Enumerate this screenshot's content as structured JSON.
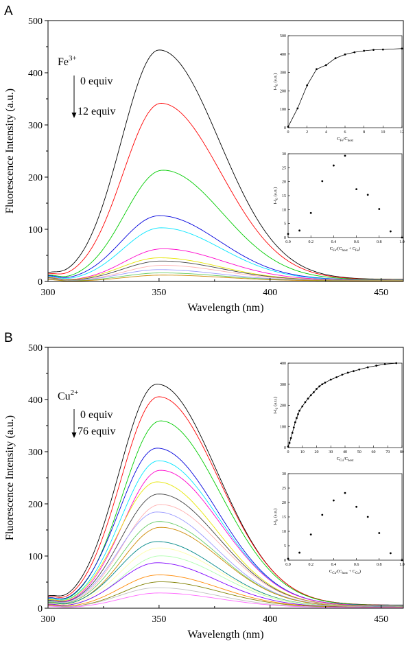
{
  "colors": [
    "#000000",
    "#ff0000",
    "#00cc00",
    "#0000dd",
    "#00e5ff",
    "#ff00cc",
    "#e6e600",
    "#404040",
    "#ffb0b0",
    "#9999ff",
    "#66cc66",
    "#cc8800",
    "#008888",
    "#ffffaa",
    "#b0ffb0",
    "#7f00ff",
    "#ff8800",
    "#808000",
    "#c0c0c0",
    "#ff66ff",
    "#00ff99"
  ],
  "panels": [
    {
      "label": "A",
      "ion_base": "Fe",
      "ion_charge": "3+",
      "start_equiv": "0 equiv",
      "end_equiv": "12 equiv",
      "chart": {
        "type": "line",
        "xlabel": "Wavelength (nm)",
        "ylabel": "Fluorescence Intensity (a.u.)",
        "xlim": [
          300,
          460
        ],
        "ylim": [
          0,
          500
        ],
        "xticks": [
          "300",
          "350",
          "400",
          "450"
        ],
        "yticks": [
          "0",
          "100",
          "200",
          "300",
          "400",
          "500"
        ],
        "peak_nm": 350,
        "peaks": [
          440,
          338,
          210,
          123,
          100,
          60,
          43,
          37,
          29,
          21,
          15,
          11
        ],
        "baseline_tail": 6
      },
      "inset_top": {
        "type": "line",
        "xlabel_base": "C",
        "xlabel_sub1": "Fe",
        "xlabel_mid": "/C",
        "xlabel_sub2": "host",
        "ylabel": "I-I",
        "ylabel_sub": "0",
        "ylabel_unit": "(a.u.)",
        "xlim": [
          0,
          12
        ],
        "ylim": [
          0,
          500
        ],
        "xticks": [
          "0",
          "2",
          "4",
          "6",
          "8",
          "10",
          "12"
        ],
        "yticks": [
          "0",
          "100",
          "200",
          "300",
          "400",
          "500"
        ],
        "x": [
          0,
          1,
          2,
          3,
          4,
          5,
          6,
          7,
          8,
          9,
          10,
          12
        ],
        "y": [
          5,
          105,
          230,
          318,
          340,
          378,
          398,
          410,
          418,
          423,
          425,
          430
        ]
      },
      "inset_bottom": {
        "type": "scatter",
        "xlabel_base": "C",
        "xlabel_sub1": "Fe",
        "xlabel_mid": "/(C",
        "xlabel_sub2": "host",
        "xlabel_mid2": " + C",
        "xlabel_sub3": "Fe",
        "xlabel_end": ")",
        "ylabel": "I-I",
        "ylabel_sub": "0",
        "ylabel_unit": "(a.u.)",
        "xlim": [
          0,
          1
        ],
        "ylim": [
          0,
          30
        ],
        "xticks": [
          "0.0",
          "0.2",
          "0.4",
          "0.6",
          "0.8",
          "1.0"
        ],
        "yticks": [
          "0",
          "5",
          "10",
          "15",
          "20",
          "25",
          "30"
        ],
        "x": [
          0.0,
          0.1,
          0.2,
          0.3,
          0.4,
          0.5,
          0.6,
          0.7,
          0.8,
          0.9,
          1.0
        ],
        "y": [
          1.3,
          2.5,
          8.8,
          20.2,
          25.8,
          29.3,
          17.3,
          15.3,
          10.2,
          2.2,
          0.0
        ]
      }
    },
    {
      "label": "B",
      "ion_base": "Cu",
      "ion_charge": "2+",
      "start_equiv": "0 equiv",
      "end_equiv": "76 equiv",
      "chart": {
        "type": "line",
        "xlabel": "Wavelength (nm)",
        "ylabel": "Fluorescence Intensity (a.u.)",
        "xlim": [
          300,
          460
        ],
        "ylim": [
          0,
          500
        ],
        "xticks": [
          "300",
          "350",
          "400",
          "450"
        ],
        "yticks": [
          "0",
          "100",
          "200",
          "300",
          "400",
          "500"
        ],
        "peak_nm": 349,
        "peaks": [
          424,
          400,
          354,
          302,
          278,
          260,
          238,
          215,
          195,
          181,
          163,
          152,
          125,
          113,
          98,
          85,
          62,
          49,
          38,
          28
        ],
        "baseline_tail": 10
      },
      "inset_top": {
        "type": "line",
        "xlabel_base": "C",
        "xlabel_sub1": "Cu",
        "xlabel_mid": "/C",
        "xlabel_sub2": "host",
        "ylabel": "I-I",
        "ylabel_sub": "0",
        "ylabel_unit": "(a.u.)",
        "xlim": [
          0,
          80
        ],
        "ylim": [
          0,
          400
        ],
        "xticks": [
          "0",
          "10",
          "20",
          "30",
          "40",
          "50",
          "60",
          "70",
          "80"
        ],
        "yticks": [
          "0",
          "100",
          "200",
          "300",
          "400"
        ],
        "x": [
          0,
          1,
          2,
          3,
          4,
          5,
          6,
          7,
          8,
          10,
          12,
          14,
          16,
          18,
          20,
          22,
          24,
          26,
          30,
          34,
          38,
          42,
          46,
          50,
          56,
          62,
          68,
          76
        ],
        "y": [
          5,
          22,
          45,
          70,
          95,
          120,
          140,
          158,
          175,
          195,
          215,
          232,
          248,
          262,
          278,
          290,
          300,
          308,
          322,
          333,
          345,
          355,
          362,
          370,
          380,
          388,
          395,
          400
        ]
      },
      "inset_bottom": {
        "type": "scatter",
        "xlabel_base": "C",
        "xlabel_sub1": "Cu",
        "xlabel_mid": "/(C",
        "xlabel_sub2": "host",
        "xlabel_mid2": " + C",
        "xlabel_sub3": "Cu",
        "xlabel_end": ")",
        "ylabel": "I-I",
        "ylabel_sub": "0",
        "ylabel_unit": "(a.u.)",
        "xlim": [
          0,
          1
        ],
        "ylim": [
          0,
          30
        ],
        "xticks": [
          "0.0",
          "0.2",
          "0.4",
          "0.6",
          "0.8",
          "1.0"
        ],
        "yticks": [
          "0",
          "5",
          "10",
          "15",
          "20",
          "25",
          "30"
        ],
        "x": [
          0.0,
          0.1,
          0.2,
          0.3,
          0.4,
          0.5,
          0.6,
          0.7,
          0.8,
          0.9,
          1.0
        ],
        "y": [
          0.5,
          2.6,
          8.9,
          15.7,
          20.7,
          23.3,
          18.5,
          15.0,
          9.4,
          2.4,
          0.0
        ]
      }
    }
  ]
}
